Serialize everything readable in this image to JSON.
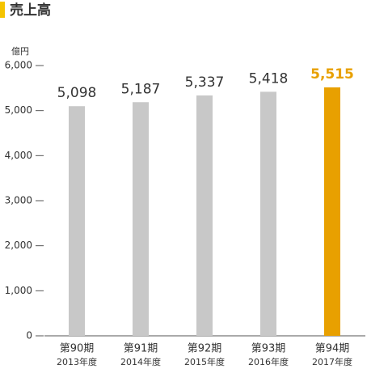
{
  "chart_data": {
    "type": "bar",
    "title": "売上高",
    "unit": "億円",
    "categories": [
      "第90期",
      "第91期",
      "第92期",
      "第93期",
      "第94期"
    ],
    "sublabels": [
      "2013年度",
      "2014年度",
      "2015年度",
      "2016年度",
      "2017年度"
    ],
    "values": [
      5098,
      5187,
      5337,
      5418,
      5515
    ],
    "value_labels": [
      "5,098",
      "5,187",
      "5,337",
      "5,418",
      "5,515"
    ],
    "color": "#c8c8c8",
    "highlight_index": 4,
    "highlight_color": "#e8a000",
    "ylim": [
      0,
      6000
    ],
    "yticks": [
      0,
      {
        "value": 1000,
        "label": "1,000"
      },
      {
        "value": 2000,
        "label": "2,000"
      },
      {
        "value": 3000,
        "label": "3,000"
      },
      {
        "value": 4000,
        "label": "4,000"
      },
      {
        "value": 5000,
        "label": "5,000"
      },
      {
        "value": 6000,
        "label": "6,000"
      }
    ]
  }
}
